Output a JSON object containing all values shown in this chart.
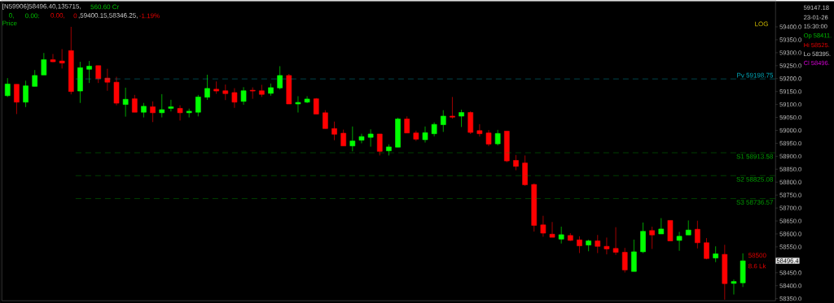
{
  "chart_data": {
    "type": "candlestick",
    "title": "[N59906]58496.40,135715,",
    "ylabel": "Price",
    "categories": [
      null,
      null,
      null,
      null,
      null,
      null,
      null,
      null,
      null,
      null,
      null,
      null,
      null,
      null,
      null,
      null,
      null,
      null,
      null,
      null,
      null,
      null,
      null,
      null,
      null,
      null,
      null,
      null,
      null,
      null,
      null,
      null,
      null,
      null,
      null,
      null,
      null,
      null,
      null,
      null,
      null,
      null,
      null,
      null,
      null,
      null,
      null,
      null,
      null,
      null,
      null,
      null,
      null,
      null,
      null,
      null,
      null,
      null,
      null,
      null,
      null,
      null,
      null,
      null,
      null,
      null,
      null,
      null,
      null,
      null,
      null,
      null,
      null,
      null,
      null,
      null,
      null,
      null,
      null,
      null,
      null,
      null
    ],
    "ohlc": [
      [
        59134,
        59202,
        59129,
        59179
      ],
      [
        59178,
        59178,
        59063,
        59109
      ],
      [
        59109,
        59192,
        59090,
        59172
      ],
      [
        59170,
        59233,
        59170,
        59212
      ],
      [
        59214,
        59299,
        59214,
        59273
      ],
      [
        59273,
        59295,
        59263,
        59265
      ],
      [
        59268,
        59314,
        59239,
        59260
      ],
      [
        59308,
        59400,
        59139,
        59150
      ],
      [
        59152,
        59265,
        59106,
        59242
      ],
      [
        59236,
        59268,
        59183,
        59248
      ],
      [
        59250,
        59250,
        59183,
        59200
      ],
      [
        59202,
        59238,
        59153,
        59186
      ],
      [
        59186,
        59207,
        59097,
        59105
      ],
      [
        59100,
        59165,
        59053,
        59120
      ],
      [
        59122,
        59137,
        59070,
        59070
      ],
      [
        59070,
        59106,
        59050,
        59093
      ],
      [
        59091,
        59112,
        59032,
        59068
      ],
      [
        59068,
        59140,
        59050,
        59080
      ],
      [
        59085,
        59118,
        59073,
        59091
      ],
      [
        59085,
        59097,
        59038,
        59068
      ],
      [
        59068,
        59084,
        59050,
        59074
      ],
      [
        59070,
        59137,
        59054,
        59129
      ],
      [
        59128,
        59215,
        59118,
        59162
      ],
      [
        59159,
        59189,
        59141,
        59152
      ],
      [
        59153,
        59177,
        59117,
        59142
      ],
      [
        59146,
        59163,
        59087,
        59109
      ],
      [
        59112,
        59167,
        59099,
        59153
      ],
      [
        59155,
        59166,
        59122,
        59152
      ],
      [
        59153,
        59176,
        59129,
        59139
      ],
      [
        59143,
        59181,
        59134,
        59165
      ],
      [
        59164,
        59248,
        59158,
        59212
      ],
      [
        59212,
        59218,
        59102,
        59102
      ],
      [
        59102,
        59132,
        59069,
        59108
      ],
      [
        59109,
        59132,
        59105,
        59121
      ],
      [
        59122,
        59125,
        59063,
        59063
      ],
      [
        59068,
        59078,
        59007,
        59007
      ],
      [
        59007,
        59034,
        58962,
        58985
      ],
      [
        58989,
        59003,
        58940,
        58940
      ],
      [
        58940,
        59015,
        58919,
        58959
      ],
      [
        58962,
        58987,
        58950,
        58976
      ],
      [
        58973,
        59004,
        58937,
        58986
      ],
      [
        58986,
        58986,
        58903,
        58919
      ],
      [
        58921,
        58946,
        58903,
        58936
      ],
      [
        58935,
        59049,
        58935,
        59044
      ],
      [
        59044,
        59054,
        58990,
        58990
      ],
      [
        58990,
        58999,
        58959,
        58966
      ],
      [
        58964,
        59015,
        58953,
        58991
      ],
      [
        58987,
        59031,
        58977,
        59023
      ],
      [
        59022,
        59078,
        58994,
        59055
      ],
      [
        59055,
        59129,
        59045,
        59051
      ],
      [
        59055,
        59080,
        59013,
        59069
      ],
      [
        59069,
        59074,
        58986,
        58992
      ],
      [
        58999,
        59024,
        58976,
        58987
      ],
      [
        58990,
        59001,
        58939,
        58947
      ],
      [
        58948,
        59002,
        58942,
        58988
      ],
      [
        58997,
        58997,
        58877,
        58882
      ],
      [
        58884,
        58905,
        58846,
        58861
      ],
      [
        58874,
        58903,
        58786,
        58790
      ],
      [
        58791,
        58795,
        58609,
        58633
      ],
      [
        58635,
        58670,
        58589,
        58603
      ],
      [
        58599,
        58646,
        58587,
        58587
      ],
      [
        58580,
        58628,
        58563,
        58597
      ],
      [
        58594,
        58603,
        58573,
        58575
      ],
      [
        58577,
        58591,
        58526,
        58554
      ],
      [
        58557,
        58578,
        58533,
        58573
      ],
      [
        58573,
        58596,
        58526,
        58552
      ],
      [
        58552,
        58586,
        58521,
        58542
      ],
      [
        58544,
        58626,
        58519,
        58529
      ],
      [
        58529,
        58546,
        58451,
        58461
      ],
      [
        58455,
        58578,
        58455,
        58531
      ],
      [
        58531,
        58644,
        58526,
        58610
      ],
      [
        58613,
        58628,
        58542,
        58596
      ],
      [
        58600,
        58661,
        58600,
        58619
      ],
      [
        58652,
        58652,
        58573,
        58573
      ],
      [
        58575,
        58608,
        58535,
        58591
      ],
      [
        58596,
        58652,
        58596,
        58615
      ],
      [
        58618,
        58651,
        58544,
        58566
      ],
      [
        58566,
        58584,
        58502,
        58505
      ],
      [
        58507,
        58552,
        58491,
        58523
      ],
      [
        58521,
        58558,
        58346,
        58408
      ],
      [
        58409,
        58424,
        58366,
        58416
      ],
      [
        58411,
        58525,
        58395,
        58496
      ]
    ],
    "ylim": [
      58342,
      59503
    ],
    "yticks": [
      {
        "value": 58350,
        "label": "58350.0"
      },
      {
        "value": 58400,
        "label": "58400.0"
      },
      {
        "value": 58450,
        "label": "58450.0"
      },
      {
        "value": 58550,
        "label": "58550.0"
      },
      {
        "value": 58600,
        "label": "58600.0"
      },
      {
        "value": 58650,
        "label": "58650.0"
      },
      {
        "value": 58700,
        "label": "58700.0"
      },
      {
        "value": 58750,
        "label": "58750.0"
      },
      {
        "value": 58800,
        "label": "58800.0"
      },
      {
        "value": 58850,
        "label": "58850.0"
      },
      {
        "value": 58900,
        "label": "58900.0"
      },
      {
        "value": 58950,
        "label": "58950.0"
      },
      {
        "value": 59000,
        "label": "59000.0"
      },
      {
        "value": 59050,
        "label": "59050.0"
      },
      {
        "value": 59100,
        "label": "59100.0"
      },
      {
        "value": 59150,
        "label": "59150.0"
      },
      {
        "value": 59200,
        "label": "59200.0"
      },
      {
        "value": 59250,
        "label": "59250.0"
      },
      {
        "value": 59300,
        "label": "59300.0"
      },
      {
        "value": 59350,
        "label": "59350.0"
      },
      {
        "value": 59400,
        "label": "59400.0"
      }
    ],
    "ref_lines": [
      {
        "axis": "y",
        "value": 59198.75,
        "label": "Pv 59198.75",
        "color": "#00a8b8",
        "line_style": "dashed"
      },
      {
        "axis": "y",
        "value": 58913.58,
        "label": "S1 58913.58",
        "color": "#00a000",
        "line_style": "dashed"
      },
      {
        "axis": "y",
        "value": 58825.08,
        "label": "S2 58825.08",
        "color": "#00a000",
        "line_style": "dashed"
      },
      {
        "axis": "y",
        "value": 58736.57,
        "label": "S3 58736.57",
        "color": "#00a000",
        "line_style": "dashed"
      },
      {
        "axis": "y",
        "value": 58496.4,
        "label": "58496.4",
        "color": "#b00000",
        "line_style": "dotted"
      }
    ],
    "annotations": [
      "560.60 Cr",
      "0,",
      "0.00:",
      "0.00,",
      "0",
      ",59400.15,58346.25,",
      "-1.19%",
      "LOG",
      "58500",
      "8.6 Lk",
      "59147.18",
      "23-01-26",
      "15:30:00",
      "Op 58411.",
      "Hi 58525.",
      "Lo 58395.",
      "Cl 58496."
    ]
  }
}
